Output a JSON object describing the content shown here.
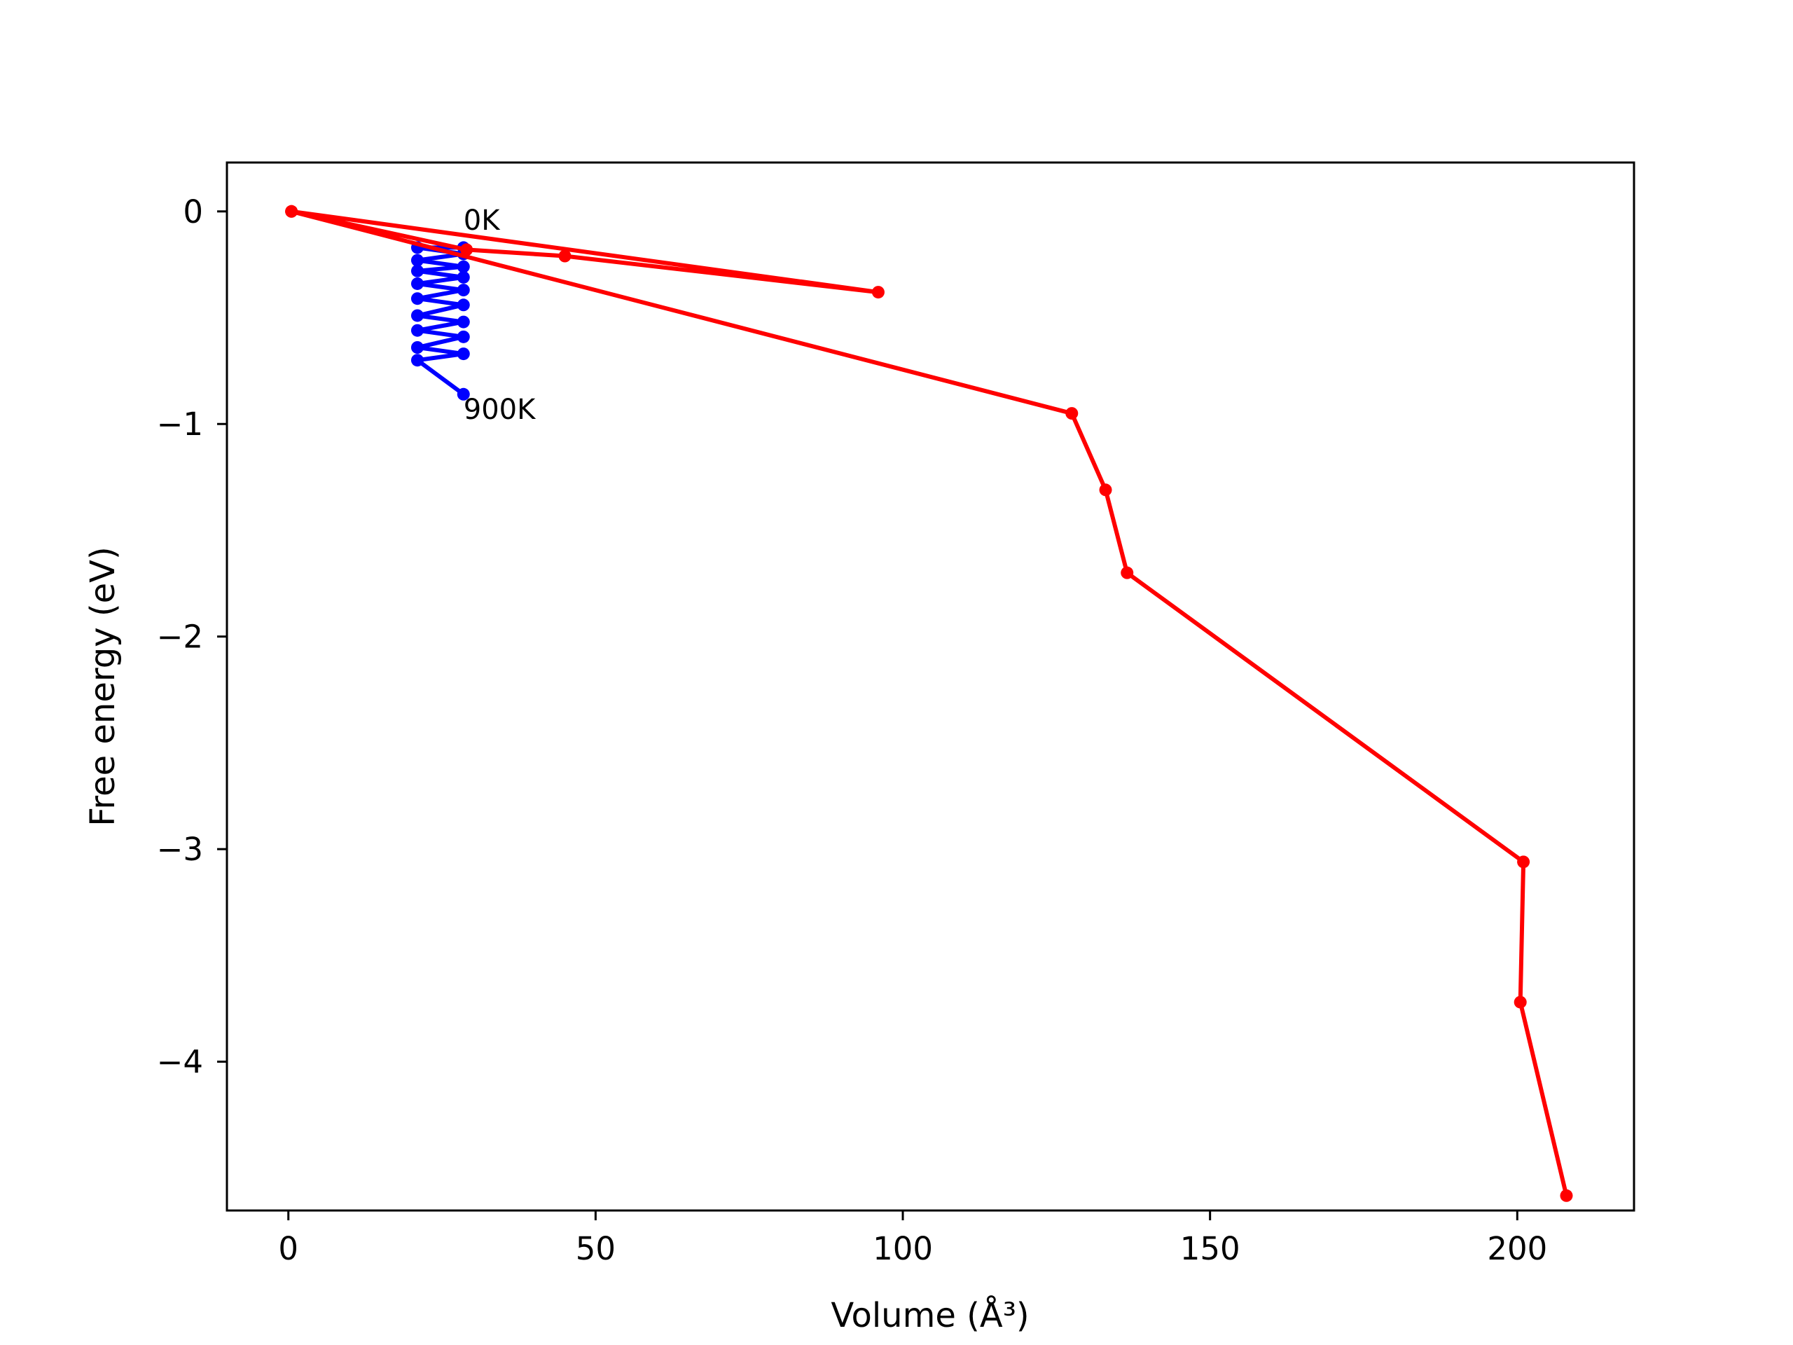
{
  "chart_data": {
    "type": "line",
    "title": "",
    "xlabel": "Volume (Å³)",
    "ylabel": "Free energy (eV)",
    "xlim": [
      -10,
      219
    ],
    "ylim": [
      -4.7,
      0.23
    ],
    "grid": false,
    "x_ticks": [
      0,
      50,
      100,
      150,
      200
    ],
    "x_tick_labels": [
      "0",
      "50",
      "100",
      "150",
      "200"
    ],
    "y_ticks": [
      0,
      -1,
      -2,
      -3,
      -4
    ],
    "y_tick_labels": [
      "0",
      "−1",
      "−2",
      "−3",
      "−4"
    ],
    "series": [
      {
        "color": "#0000ff",
        "marker": "circle",
        "line": true,
        "x": [
          28.5,
          21.0,
          28.5,
          21.0,
          28.5,
          21.0,
          28.5,
          21.0,
          28.5,
          21.0,
          28.5,
          21.0,
          28.5,
          21.0,
          28.5,
          21.0,
          28.5,
          21.0,
          28.5
        ],
        "y": [
          -0.17,
          -0.17,
          -0.2,
          -0.23,
          -0.26,
          -0.28,
          -0.31,
          -0.34,
          -0.37,
          -0.41,
          -0.44,
          -0.49,
          -0.52,
          -0.56,
          -0.59,
          -0.64,
          -0.67,
          -0.7,
          -0.86
        ]
      },
      {
        "color": "#ff0000",
        "marker": "circle",
        "line": true,
        "x": [
          0.5,
          29.0,
          45.0,
          96.0,
          0.5,
          127.5,
          133.0,
          136.5,
          201.0,
          200.5,
          208.0
        ],
        "y": [
          0.0,
          -0.18,
          -0.21,
          -0.38,
          0.0,
          -0.95,
          -1.31,
          -1.7,
          -3.06,
          -3.72,
          -4.63
        ]
      }
    ],
    "annotations": [
      {
        "text": "0K",
        "x": 28.5,
        "y": -0.04
      },
      {
        "text": "900K",
        "x": 28.5,
        "y": -0.93
      }
    ]
  }
}
